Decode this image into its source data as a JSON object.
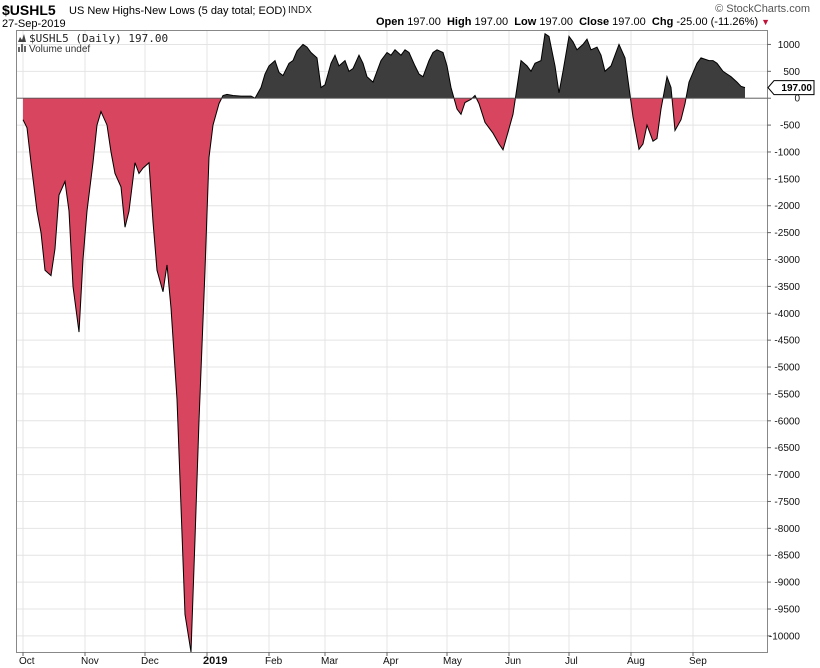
{
  "header": {
    "symbol": "$USHL5",
    "description": "US New Highs-New Lows (5 day total; EOD)",
    "exchange": "INDX",
    "date": "27-Sep-2019",
    "copyright": "© StockCharts.com",
    "open_label": "Open",
    "open": "197.00",
    "high_label": "High",
    "high": "197.00",
    "low_label": "Low",
    "low": "197.00",
    "close_label": "Close",
    "close": "197.00",
    "chg_label": "Chg",
    "chg": "-25.00 (-11.26%)",
    "chg_arrow": "▼"
  },
  "legend": {
    "series_label": "$USHL5 (Daily) 197.00",
    "volume_label": "Volume undef"
  },
  "colors": {
    "positive_fill": "#3d3d3d",
    "negative_fill": "#d7455e",
    "grid": "#e4e4e4",
    "line": "#000000",
    "arrow_down": "#c0133a"
  },
  "chart_data": {
    "type": "area",
    "ylim": [
      -10300,
      1250
    ],
    "yticks": [
      1000,
      500,
      0,
      -500,
      -1000,
      -1500,
      -2000,
      -2500,
      -3000,
      -3500,
      -4000,
      -4500,
      -5000,
      -5500,
      -6000,
      -6500,
      -7000,
      -7500,
      -8000,
      -8500,
      -9000,
      -9500,
      -10000
    ],
    "ytick_labels": [
      "1000",
      "500",
      "0",
      "-500",
      "-1000",
      "-1500",
      "-2000",
      "-2500",
      "-3000",
      "-3500",
      "-4000",
      "-4500",
      "-5000",
      "-5500",
      "-6000",
      "-6500",
      "-7000",
      "-7500",
      "-8000",
      "-8500",
      "-9000",
      "-9500",
      "-10000"
    ],
    "x_range": [
      "2018-09-28",
      "2019-10-08"
    ],
    "xticks": [
      {
        "label": "Oct",
        "date": "2018-10-01",
        "bold": false
      },
      {
        "label": "Nov",
        "date": "2018-11-01",
        "bold": false
      },
      {
        "label": "Dec",
        "date": "2018-12-01",
        "bold": false
      },
      {
        "label": "2019",
        "date": "2019-01-01",
        "bold": true
      },
      {
        "label": "Feb",
        "date": "2019-02-01",
        "bold": false
      },
      {
        "label": "Mar",
        "date": "2019-03-01",
        "bold": false
      },
      {
        "label": "Apr",
        "date": "2019-04-01",
        "bold": false
      },
      {
        "label": "May",
        "date": "2019-05-01",
        "bold": false
      },
      {
        "label": "Jun",
        "date": "2019-06-01",
        "bold": false
      },
      {
        "label": "Jul",
        "date": "2019-07-01",
        "bold": false
      },
      {
        "label": "Aug",
        "date": "2019-08-01",
        "bold": false
      },
      {
        "label": "Sep",
        "date": "2019-09-01",
        "bold": false
      }
    ],
    "last_value_label": "197.00",
    "series": [
      {
        "points": [
          [
            "2018-10-01",
            -400
          ],
          [
            "2018-10-03",
            -550
          ],
          [
            "2018-10-05",
            -1200
          ],
          [
            "2018-10-08",
            -2100
          ],
          [
            "2018-10-10",
            -2500
          ],
          [
            "2018-10-12",
            -3200
          ],
          [
            "2018-10-15",
            -3300
          ],
          [
            "2018-10-17",
            -2800
          ],
          [
            "2018-10-19",
            -1800
          ],
          [
            "2018-10-22",
            -1550
          ],
          [
            "2018-10-24",
            -2100
          ],
          [
            "2018-10-26",
            -3500
          ],
          [
            "2018-10-29",
            -4350
          ],
          [
            "2018-10-31",
            -3000
          ],
          [
            "2018-11-02",
            -2100
          ],
          [
            "2018-11-05",
            -1200
          ],
          [
            "2018-11-07",
            -500
          ],
          [
            "2018-11-09",
            -250
          ],
          [
            "2018-11-12",
            -500
          ],
          [
            "2018-11-14",
            -1000
          ],
          [
            "2018-11-16",
            -1400
          ],
          [
            "2018-11-19",
            -1650
          ],
          [
            "2018-11-21",
            -2400
          ],
          [
            "2018-11-23",
            -2100
          ],
          [
            "2018-11-26",
            -1200
          ],
          [
            "2018-11-28",
            -1400
          ],
          [
            "2018-11-30",
            -1300
          ],
          [
            "2018-12-03",
            -1200
          ],
          [
            "2018-12-05",
            -2300
          ],
          [
            "2018-12-07",
            -3200
          ],
          [
            "2018-12-10",
            -3600
          ],
          [
            "2018-12-12",
            -3100
          ],
          [
            "2018-12-14",
            -3900
          ],
          [
            "2018-12-17",
            -5600
          ],
          [
            "2018-12-19",
            -7600
          ],
          [
            "2018-12-21",
            -9600
          ],
          [
            "2018-12-24",
            -10300
          ],
          [
            "2018-12-26",
            -8200
          ],
          [
            "2018-12-28",
            -6000
          ],
          [
            "2018-12-31",
            -3200
          ],
          [
            "2019-01-02",
            -1100
          ],
          [
            "2019-01-04",
            -500
          ],
          [
            "2019-01-07",
            -100
          ],
          [
            "2019-01-09",
            50
          ],
          [
            "2019-01-11",
            70
          ],
          [
            "2019-01-14",
            50
          ],
          [
            "2019-01-18",
            40
          ],
          [
            "2019-01-23",
            40
          ],
          [
            "2019-01-25",
            0
          ],
          [
            "2019-01-28",
            200
          ],
          [
            "2019-01-30",
            450
          ],
          [
            "2019-02-01",
            600
          ],
          [
            "2019-02-04",
            700
          ],
          [
            "2019-02-06",
            480
          ],
          [
            "2019-02-08",
            420
          ],
          [
            "2019-02-11",
            650
          ],
          [
            "2019-02-13",
            700
          ],
          [
            "2019-02-15",
            880
          ],
          [
            "2019-02-18",
            1000
          ],
          [
            "2019-02-20",
            950
          ],
          [
            "2019-02-22",
            850
          ],
          [
            "2019-02-25",
            750
          ],
          [
            "2019-02-27",
            200
          ],
          [
            "2019-03-01",
            250
          ],
          [
            "2019-03-04",
            650
          ],
          [
            "2019-03-06",
            800
          ],
          [
            "2019-03-08",
            600
          ],
          [
            "2019-03-11",
            700
          ],
          [
            "2019-03-13",
            500
          ],
          [
            "2019-03-15",
            550
          ],
          [
            "2019-03-18",
            800
          ],
          [
            "2019-03-20",
            650
          ],
          [
            "2019-03-22",
            400
          ],
          [
            "2019-03-25",
            300
          ],
          [
            "2019-03-27",
            500
          ],
          [
            "2019-03-29",
            700
          ],
          [
            "2019-04-01",
            850
          ],
          [
            "2019-04-03",
            800
          ],
          [
            "2019-04-05",
            900
          ],
          [
            "2019-04-08",
            800
          ],
          [
            "2019-04-10",
            900
          ],
          [
            "2019-04-12",
            850
          ],
          [
            "2019-04-15",
            600
          ],
          [
            "2019-04-17",
            450
          ],
          [
            "2019-04-19",
            400
          ],
          [
            "2019-04-22",
            700
          ],
          [
            "2019-04-24",
            850
          ],
          [
            "2019-04-26",
            900
          ],
          [
            "2019-04-29",
            850
          ],
          [
            "2019-05-01",
            600
          ],
          [
            "2019-05-03",
            200
          ],
          [
            "2019-05-06",
            -200
          ],
          [
            "2019-05-08",
            -300
          ],
          [
            "2019-05-10",
            -80
          ],
          [
            "2019-05-13",
            -20
          ],
          [
            "2019-05-15",
            50
          ],
          [
            "2019-05-17",
            -100
          ],
          [
            "2019-05-20",
            -450
          ],
          [
            "2019-05-22",
            -550
          ],
          [
            "2019-05-24",
            -650
          ],
          [
            "2019-05-27",
            -850
          ],
          [
            "2019-05-29",
            -960
          ],
          [
            "2019-05-31",
            -700
          ],
          [
            "2019-06-03",
            -300
          ],
          [
            "2019-06-05",
            200
          ],
          [
            "2019-06-07",
            700
          ],
          [
            "2019-06-10",
            600
          ],
          [
            "2019-06-12",
            500
          ],
          [
            "2019-06-14",
            650
          ],
          [
            "2019-06-17",
            700
          ],
          [
            "2019-06-19",
            1200
          ],
          [
            "2019-06-21",
            1150
          ],
          [
            "2019-06-24",
            600
          ],
          [
            "2019-06-26",
            100
          ],
          [
            "2019-06-28",
            500
          ],
          [
            "2019-07-01",
            1150
          ],
          [
            "2019-07-03",
            1050
          ],
          [
            "2019-07-05",
            900
          ],
          [
            "2019-07-08",
            1000
          ],
          [
            "2019-07-10",
            1100
          ],
          [
            "2019-07-12",
            900
          ],
          [
            "2019-07-15",
            950
          ],
          [
            "2019-07-17",
            800
          ],
          [
            "2019-07-19",
            500
          ],
          [
            "2019-07-22",
            600
          ],
          [
            "2019-07-24",
            800
          ],
          [
            "2019-07-26",
            1000
          ],
          [
            "2019-07-29",
            750
          ],
          [
            "2019-07-31",
            200
          ],
          [
            "2019-08-02",
            -350
          ],
          [
            "2019-08-05",
            -950
          ],
          [
            "2019-08-07",
            -850
          ],
          [
            "2019-08-09",
            -500
          ],
          [
            "2019-08-12",
            -800
          ],
          [
            "2019-08-14",
            -750
          ],
          [
            "2019-08-16",
            -200
          ],
          [
            "2019-08-19",
            400
          ],
          [
            "2019-08-21",
            200
          ],
          [
            "2019-08-23",
            -600
          ],
          [
            "2019-08-26",
            -400
          ],
          [
            "2019-08-28",
            -100
          ],
          [
            "2019-08-30",
            300
          ],
          [
            "2019-09-03",
            650
          ],
          [
            "2019-09-05",
            750
          ],
          [
            "2019-09-09",
            700
          ],
          [
            "2019-09-11",
            700
          ],
          [
            "2019-09-13",
            650
          ],
          [
            "2019-09-16",
            500
          ],
          [
            "2019-09-18",
            450
          ],
          [
            "2019-09-20",
            400
          ],
          [
            "2019-09-23",
            300
          ],
          [
            "2019-09-25",
            222
          ],
          [
            "2019-09-27",
            197
          ]
        ]
      }
    ]
  }
}
